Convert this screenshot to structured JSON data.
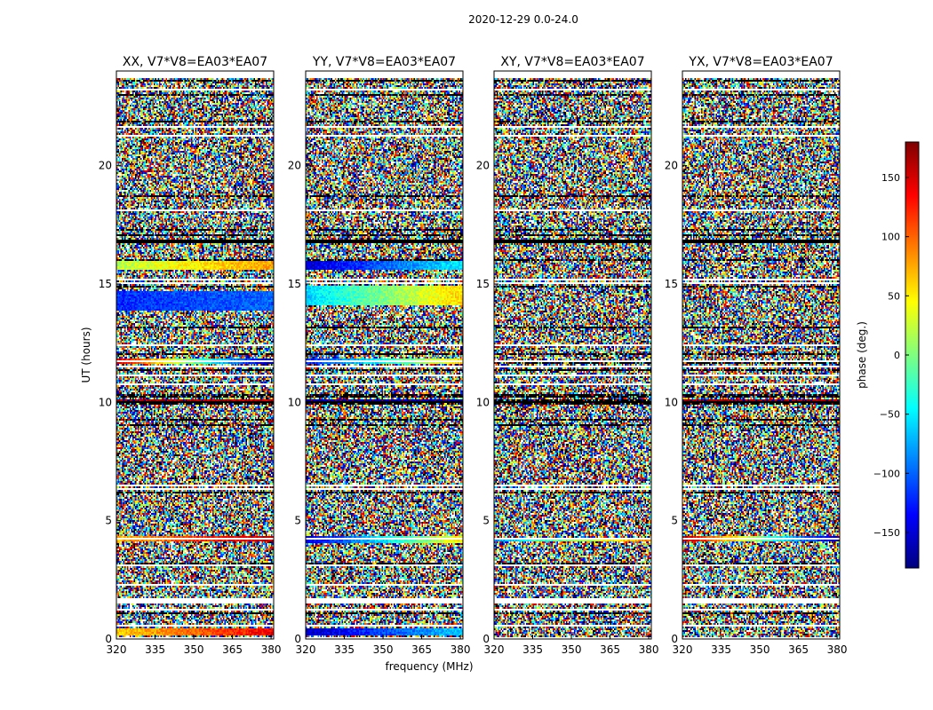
{
  "figure": {
    "suptitle": "2020-12-29 0.0-24.0",
    "xlabel": "frequency (MHz)",
    "ylabel": "UT (hours)"
  },
  "chart_data": {
    "type": "heatmap",
    "colormap": "jet",
    "xlim": [
      320,
      381
    ],
    "ylim": [
      0,
      24
    ],
    "xticks": [
      320,
      335,
      350,
      365,
      380
    ],
    "yticks": [
      0,
      5,
      10,
      15,
      20
    ],
    "colorbar": {
      "label": "phase (deg.)",
      "range": [
        -180,
        180
      ],
      "ticks": [
        150,
        100,
        50,
        0,
        -50,
        -100,
        -150
      ],
      "tick_labels": [
        "150",
        "100",
        "50",
        "0",
        "−50",
        "−100",
        "−150"
      ]
    },
    "flagged_bands_hours": [
      [
        0.55,
        0.6
      ],
      [
        1.1,
        1.15
      ],
      [
        1.5,
        1.7
      ],
      [
        3.1,
        3.15
      ],
      [
        11.45,
        11.55
      ],
      [
        12.4,
        12.45
      ],
      [
        18.1,
        18.15
      ],
      [
        23.7,
        23.85
      ]
    ],
    "black_bands_hours": [
      [
        16.7,
        16.85
      ],
      [
        10.0,
        10.05
      ]
    ],
    "panels": [
      {
        "title": "XX, V7*V8=EA03*EA07",
        "coherent_features": [
          {
            "t": 11.75,
            "span": 0.25,
            "phase_start": 150,
            "phase_end": -170
          },
          {
            "t": 4.25,
            "span": 0.25,
            "phase_start": 70,
            "phase_end": 160
          },
          {
            "t": 0.3,
            "span": 0.35,
            "phase_start": 60,
            "phase_end": 140
          },
          {
            "t": 14.3,
            "span": 0.8,
            "phase_start": -120,
            "phase_end": -100
          },
          {
            "t": 15.8,
            "span": 0.4,
            "phase_start": 20,
            "phase_end": 80
          },
          {
            "t": 10.05,
            "span": 0.15,
            "phase_start": 170,
            "phase_end": 160
          }
        ]
      },
      {
        "title": "YY, V7*V8=EA03*EA07",
        "coherent_features": [
          {
            "t": 11.75,
            "span": 0.25,
            "phase_start": -130,
            "phase_end": 60
          },
          {
            "t": 4.2,
            "span": 0.25,
            "phase_start": -150,
            "phase_end": 50
          },
          {
            "t": 0.3,
            "span": 0.35,
            "phase_start": -160,
            "phase_end": -60
          },
          {
            "t": 14.5,
            "span": 0.8,
            "phase_start": -60,
            "phase_end": 60
          },
          {
            "t": 15.8,
            "span": 0.4,
            "phase_start": -150,
            "phase_end": -50
          },
          {
            "t": 10.05,
            "span": 0.15,
            "phase_start": -170,
            "phase_end": -160
          }
        ]
      },
      {
        "title": "XY, V7*V8=EA03*EA07",
        "coherent_features": [
          {
            "t": 4.2,
            "span": 0.2,
            "phase_start": -80,
            "phase_end": 90
          }
        ]
      },
      {
        "title": "YX, V7*V8=EA03*EA07",
        "coherent_features": [
          {
            "t": 4.25,
            "span": 0.2,
            "phase_start": 160,
            "phase_end": -170
          },
          {
            "t": 10.05,
            "span": 0.15,
            "phase_start": 170,
            "phase_end": 170
          }
        ]
      }
    ]
  }
}
